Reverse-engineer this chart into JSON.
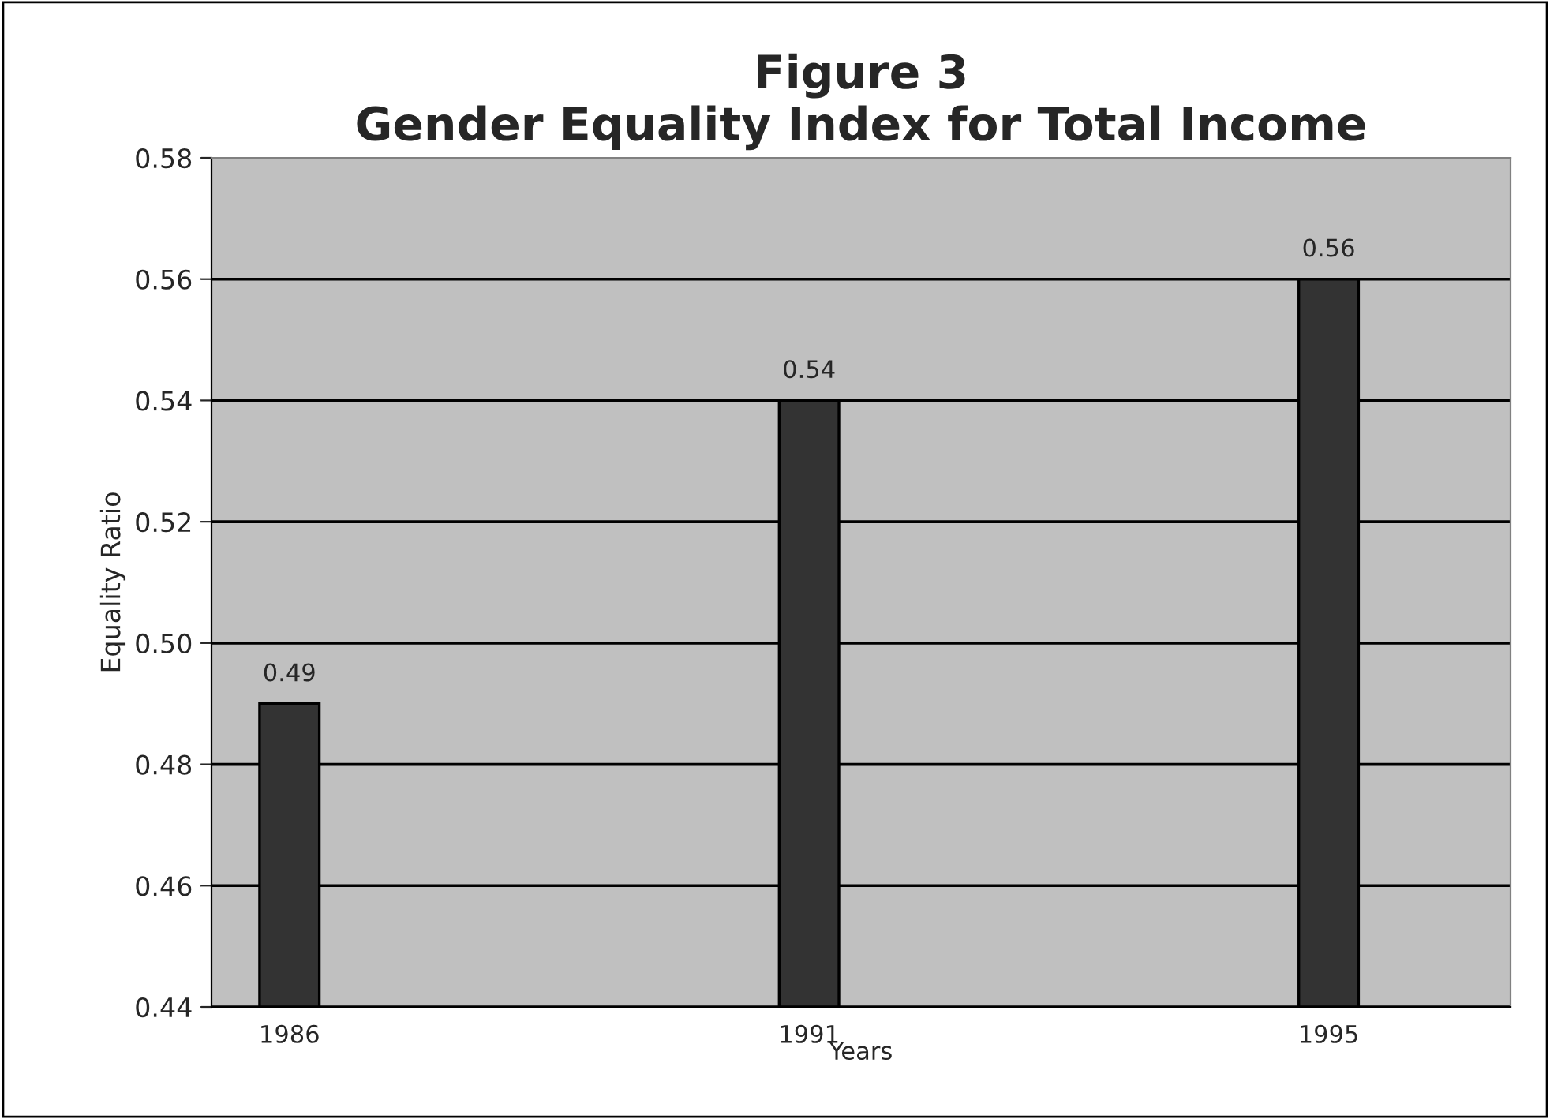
{
  "chart_data": {
    "type": "bar",
    "title": "Figure 3\nGender Equality Index for Total Income",
    "xlabel": "Years",
    "ylabel": "Equality Ratio",
    "categories": [
      "1986",
      "1991",
      "1995"
    ],
    "series": [
      {
        "color": "#333333",
        "values": [
          0.49,
          0.54,
          0.56
        ]
      }
    ],
    "ylim": [
      0.44,
      0.58
    ],
    "yticks": [
      0.44,
      0.46,
      0.48,
      {
        "value": 0.5,
        "label": "0.50"
      },
      0.52,
      0.54,
      0.56,
      0.58
    ],
    "grid": "y",
    "data_labels": true,
    "legend": false
  }
}
